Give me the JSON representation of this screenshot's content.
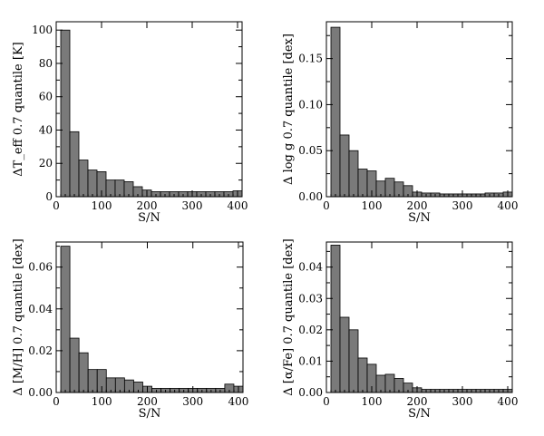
{
  "chart_data": [
    {
      "type": "bar",
      "xlabel": "S/N",
      "ylabel": "ΔT_eff 0.7 quantile [K]",
      "xlim": [
        0,
        410
      ],
      "ylim": [
        0,
        105
      ],
      "xticks": [
        0,
        100,
        200,
        300,
        400
      ],
      "yticks": [
        0,
        20,
        40,
        60,
        80,
        100
      ],
      "ytick_labels": [
        "0",
        "20",
        "40",
        "60",
        "80",
        "100"
      ],
      "bin_width": 20,
      "x": [
        20,
        40,
        60,
        80,
        100,
        120,
        140,
        160,
        180,
        200,
        220,
        240,
        260,
        280,
        300,
        320,
        340,
        360,
        380,
        400
      ],
      "values": [
        100,
        39,
        22,
        16,
        15,
        10,
        10,
        9,
        6,
        4,
        3,
        3,
        3,
        3,
        3,
        3,
        3,
        3,
        3,
        3.5
      ]
    },
    {
      "type": "bar",
      "xlabel": "S/N",
      "ylabel": "Δ log g 0.7 quantile [dex]",
      "xlim": [
        0,
        410
      ],
      "ylim": [
        0,
        0.19
      ],
      "xticks": [
        0,
        100,
        200,
        300,
        400
      ],
      "yticks": [
        0,
        0.05,
        0.1,
        0.15
      ],
      "ytick_labels": [
        "0.00",
        "0.05",
        "0.10",
        "0.15"
      ],
      "bin_width": 20,
      "x": [
        20,
        40,
        60,
        80,
        100,
        120,
        140,
        160,
        180,
        200,
        220,
        240,
        260,
        280,
        300,
        320,
        340,
        360,
        380,
        400
      ],
      "values": [
        0.184,
        0.067,
        0.05,
        0.03,
        0.028,
        0.017,
        0.02,
        0.016,
        0.012,
        0.005,
        0.004,
        0.004,
        0.003,
        0.003,
        0.003,
        0.003,
        0.003,
        0.004,
        0.004,
        0.005
      ]
    },
    {
      "type": "bar",
      "xlabel": "S/N",
      "ylabel": "Δ [M/H] 0.7 quantile [dex]",
      "xlim": [
        0,
        410
      ],
      "ylim": [
        0,
        0.072
      ],
      "xticks": [
        0,
        100,
        200,
        300,
        400
      ],
      "yticks": [
        0,
        0.02,
        0.04,
        0.06
      ],
      "ytick_labels": [
        "0.00",
        "0.02",
        "0.04",
        "0.06"
      ],
      "bin_width": 20,
      "x": [
        20,
        40,
        60,
        80,
        100,
        120,
        140,
        160,
        180,
        200,
        220,
        240,
        260,
        280,
        300,
        320,
        340,
        360,
        380,
        400
      ],
      "values": [
        0.07,
        0.026,
        0.019,
        0.011,
        0.011,
        0.007,
        0.007,
        0.006,
        0.005,
        0.003,
        0.002,
        0.002,
        0.002,
        0.002,
        0.002,
        0.002,
        0.002,
        0.002,
        0.004,
        0.003
      ]
    },
    {
      "type": "bar",
      "xlabel": "S/N",
      "ylabel": "Δ [α/Fe] 0.7 quantile [dex]",
      "xlim": [
        0,
        410
      ],
      "ylim": [
        0,
        0.048
      ],
      "xticks": [
        0,
        100,
        200,
        300,
        400
      ],
      "yticks": [
        0,
        0.01,
        0.02,
        0.03,
        0.04
      ],
      "ytick_labels": [
        "0.00",
        "0.01",
        "0.02",
        "0.03",
        "0.04"
      ],
      "bin_width": 20,
      "x": [
        20,
        40,
        60,
        80,
        100,
        120,
        140,
        160,
        180,
        200,
        220,
        240,
        260,
        280,
        300,
        320,
        340,
        360,
        380,
        400
      ],
      "values": [
        0.047,
        0.024,
        0.02,
        0.011,
        0.009,
        0.0055,
        0.0058,
        0.0045,
        0.003,
        0.0015,
        0.001,
        0.001,
        0.001,
        0.001,
        0.001,
        0.001,
        0.001,
        0.001,
        0.001,
        0.001
      ]
    }
  ]
}
